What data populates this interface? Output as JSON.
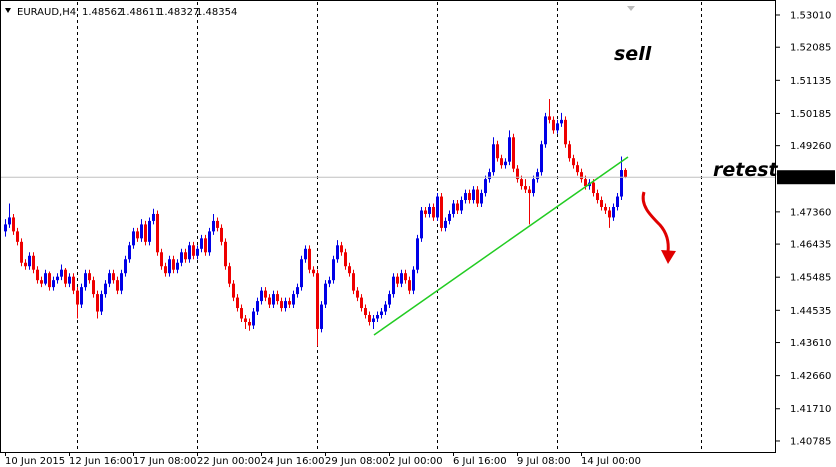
{
  "chart_data": {
    "type": "candlestick",
    "symbol": "EURAUD,H4",
    "up_color": "#0000e6",
    "down_color": "#ee0000",
    "current_price_line": true,
    "annotations": [
      {
        "text": "sell",
        "color": "#e60000"
      },
      {
        "text": "retest",
        "color": "#9b17e6"
      }
    ],
    "ylim": [
      1.4044,
      1.5344
    ],
    "yticks": [
      {
        "value": 1.5301,
        "label": "1.53010"
      },
      1.52085,
      1.51135,
      1.50185,
      {
        "value": 1.4926,
        "label": "1.49260"
      },
      {
        "value": 1.4736,
        "label": "1.47360"
      },
      1.46435,
      1.45485,
      1.44535,
      {
        "value": 1.4361,
        "label": "1.43610"
      },
      {
        "value": 1.4266,
        "label": "1.42660"
      },
      {
        "value": 1.4171,
        "label": "1.41710"
      },
      1.40785
    ],
    "categories": [
      "10 Jun 2015",
      null,
      null,
      null,
      null,
      null,
      null,
      null,
      null,
      null,
      null,
      null,
      null,
      null,
      null,
      null,
      "12 Jun 16:00",
      null,
      null,
      null,
      null,
      null,
      null,
      null,
      null,
      null,
      null,
      null,
      null,
      null,
      null,
      null,
      "17 Jun 08:00",
      null,
      null,
      null,
      null,
      null,
      null,
      null,
      null,
      null,
      null,
      null,
      null,
      null,
      null,
      null,
      "22 Jun 00:00",
      null,
      null,
      null,
      null,
      null,
      null,
      null,
      null,
      null,
      null,
      null,
      null,
      null,
      null,
      null,
      "24 Jun 16:00",
      null,
      null,
      null,
      null,
      null,
      null,
      null,
      null,
      null,
      null,
      null,
      null,
      null,
      null,
      null,
      "29 Jun 08:00",
      null,
      null,
      null,
      null,
      null,
      null,
      null,
      null,
      null,
      null,
      null,
      null,
      null,
      null,
      null,
      "2 Jul 00:00",
      null,
      null,
      null,
      null,
      null,
      null,
      null,
      null,
      null,
      null,
      null,
      null,
      null,
      null,
      null,
      "6 Jul 16:00",
      null,
      null,
      null,
      null,
      null,
      null,
      null,
      null,
      null,
      null,
      null,
      null,
      null,
      null,
      null,
      "9 Jul 08:00",
      null,
      null,
      null,
      null,
      null,
      null,
      null,
      null,
      null,
      null,
      null,
      null,
      null,
      null,
      null,
      "14 Jul 00:00",
      null,
      null,
      null,
      null,
      null,
      null,
      null,
      null,
      null,
      null,
      null
    ],
    "ohlc": [
      [
        1.468,
        1.4715,
        1.4665,
        1.47
      ],
      [
        1.47,
        1.476,
        1.469,
        1.472
      ],
      [
        1.472,
        1.473,
        1.467,
        1.468
      ],
      [
        1.468,
        1.469,
        1.464,
        1.465
      ],
      [
        1.465,
        1.466,
        1.458,
        1.459
      ],
      [
        1.459,
        1.46,
        1.457,
        1.458
      ],
      [
        1.458,
        1.462,
        1.457,
        1.461
      ],
      [
        1.461,
        1.462,
        1.456,
        1.457
      ],
      [
        1.457,
        1.458,
        1.453,
        1.454
      ],
      [
        1.454,
        1.455,
        1.452,
        1.453
      ],
      [
        1.453,
        1.457,
        1.4525,
        1.456
      ],
      [
        1.456,
        1.4565,
        1.451,
        1.452
      ],
      [
        1.452,
        1.455,
        1.451,
        1.454
      ],
      [
        1.454,
        1.456,
        1.453,
        1.455
      ],
      [
        1.455,
        1.4585,
        1.454,
        1.457
      ],
      [
        1.457,
        1.4575,
        1.452,
        1.453
      ],
      [
        1.453,
        1.456,
        1.452,
        1.455
      ],
      [
        1.455,
        1.456,
        1.45,
        1.451
      ],
      [
        1.451,
        1.452,
        1.443,
        1.447
      ],
      [
        1.447,
        1.453,
        1.446,
        1.452
      ],
      [
        1.452,
        1.457,
        1.451,
        1.456
      ],
      [
        1.456,
        1.457,
        1.453,
        1.454
      ],
      [
        1.454,
        1.455,
        1.449,
        1.45
      ],
      [
        1.45,
        1.451,
        1.443,
        1.445
      ],
      [
        1.445,
        1.451,
        1.444,
        1.45
      ],
      [
        1.45,
        1.454,
        1.449,
        1.453
      ],
      [
        1.453,
        1.457,
        1.452,
        1.456
      ],
      [
        1.456,
        1.457,
        1.453,
        1.454
      ],
      [
        1.454,
        1.455,
        1.45,
        1.451
      ],
      [
        1.451,
        1.457,
        1.45,
        1.456
      ],
      [
        1.456,
        1.461,
        1.455,
        1.46
      ],
      [
        1.46,
        1.465,
        1.459,
        1.464
      ],
      [
        1.464,
        1.469,
        1.463,
        1.468
      ],
      [
        1.468,
        1.469,
        1.465,
        1.466
      ],
      [
        1.466,
        1.4715,
        1.465,
        1.47
      ],
      [
        1.47,
        1.471,
        1.464,
        1.465
      ],
      [
        1.465,
        1.472,
        1.464,
        1.471
      ],
      [
        1.471,
        1.4745,
        1.47,
        1.473
      ],
      [
        1.473,
        1.474,
        1.461,
        1.462
      ],
      [
        1.462,
        1.463,
        1.457,
        1.458
      ],
      [
        1.458,
        1.459,
        1.455,
        1.456
      ],
      [
        1.456,
        1.461,
        1.455,
        1.46
      ],
      [
        1.46,
        1.461,
        1.456,
        1.457
      ],
      [
        1.457,
        1.46,
        1.456,
        1.459
      ],
      [
        1.459,
        1.463,
        1.458,
        1.462
      ],
      [
        1.462,
        1.463,
        1.459,
        1.46
      ],
      [
        1.46,
        1.465,
        1.459,
        1.464
      ],
      [
        1.464,
        1.465,
        1.46,
        1.461
      ],
      [
        1.461,
        1.464,
        1.46,
        1.463
      ],
      [
        1.463,
        1.467,
        1.462,
        1.466
      ],
      [
        1.466,
        1.467,
        1.461,
        1.462
      ],
      [
        1.462,
        1.469,
        1.461,
        1.468
      ],
      [
        1.468,
        1.473,
        1.467,
        1.471
      ],
      [
        1.471,
        1.472,
        1.468,
        1.469
      ],
      [
        1.469,
        1.47,
        1.464,
        1.465
      ],
      [
        1.465,
        1.466,
        1.457,
        1.458
      ],
      [
        1.458,
        1.459,
        1.452,
        1.453
      ],
      [
        1.453,
        1.454,
        1.448,
        1.449
      ],
      [
        1.449,
        1.45,
        1.445,
        1.446
      ],
      [
        1.446,
        1.447,
        1.442,
        1.443
      ],
      [
        1.443,
        1.444,
        1.44,
        1.442
      ],
      [
        1.442,
        1.443,
        1.4395,
        1.441
      ],
      [
        1.441,
        1.446,
        1.44,
        1.445
      ],
      [
        1.445,
        1.449,
        1.444,
        1.448
      ],
      [
        1.448,
        1.452,
        1.447,
        1.451
      ],
      [
        1.451,
        1.452,
        1.448,
        1.449
      ],
      [
        1.449,
        1.45,
        1.446,
        1.447
      ],
      [
        1.447,
        1.451,
        1.446,
        1.45
      ],
      [
        1.45,
        1.451,
        1.447,
        1.448
      ],
      [
        1.448,
        1.449,
        1.445,
        1.446
      ],
      [
        1.446,
        1.449,
        1.445,
        1.448
      ],
      [
        1.448,
        1.449,
        1.446,
        1.447
      ],
      [
        1.447,
        1.451,
        1.446,
        1.45
      ],
      [
        1.45,
        1.453,
        1.449,
        1.452
      ],
      [
        1.452,
        1.461,
        1.451,
        1.46
      ],
      [
        1.46,
        1.464,
        1.459,
        1.463
      ],
      [
        1.463,
        1.464,
        1.456,
        1.457
      ],
      [
        1.457,
        1.458,
        1.455,
        1.456
      ],
      [
        1.456,
        1.457,
        1.435,
        1.44
      ],
      [
        1.44,
        1.448,
        1.439,
        1.447
      ],
      [
        1.447,
        1.454,
        1.446,
        1.453
      ],
      [
        1.453,
        1.455,
        1.452,
        1.454
      ],
      [
        1.454,
        1.461,
        1.453,
        1.46
      ],
      [
        1.46,
        1.4655,
        1.459,
        1.464
      ],
      [
        1.464,
        1.465,
        1.461,
        1.462
      ],
      [
        1.462,
        1.463,
        1.457,
        1.458
      ],
      [
        1.458,
        1.459,
        1.455,
        1.456
      ],
      [
        1.456,
        1.457,
        1.45,
        1.451
      ],
      [
        1.451,
        1.452,
        1.448,
        1.449
      ],
      [
        1.449,
        1.45,
        1.445,
        1.446
      ],
      [
        1.446,
        1.447,
        1.443,
        1.444
      ],
      [
        1.444,
        1.445,
        1.441,
        1.442
      ],
      [
        1.442,
        1.444,
        1.44,
        1.443
      ],
      [
        1.443,
        1.445,
        1.442,
        1.444
      ],
      [
        1.444,
        1.446,
        1.443,
        1.445
      ],
      [
        1.445,
        1.448,
        1.444,
        1.447
      ],
      [
        1.447,
        1.451,
        1.446,
        1.45
      ],
      [
        1.45,
        1.456,
        1.449,
        1.455
      ],
      [
        1.455,
        1.456,
        1.452,
        1.453
      ],
      [
        1.453,
        1.457,
        1.452,
        1.456
      ],
      [
        1.456,
        1.457,
        1.453,
        1.454
      ],
      [
        1.454,
        1.455,
        1.45,
        1.451
      ],
      [
        1.451,
        1.458,
        1.45,
        1.457
      ],
      [
        1.457,
        1.467,
        1.456,
        1.466
      ],
      [
        1.466,
        1.475,
        1.465,
        1.474
      ],
      [
        1.474,
        1.475,
        1.472,
        1.473
      ],
      [
        1.473,
        1.476,
        1.472,
        1.475
      ],
      [
        1.475,
        1.476,
        1.471,
        1.472
      ],
      [
        1.472,
        1.479,
        1.471,
        1.478
      ],
      [
        1.478,
        1.479,
        1.468,
        1.469
      ],
      [
        1.469,
        1.472,
        1.468,
        1.471
      ],
      [
        1.471,
        1.474,
        1.47,
        1.473
      ],
      [
        1.473,
        1.477,
        1.472,
        1.476
      ],
      [
        1.476,
        1.477,
        1.473,
        1.474
      ],
      [
        1.474,
        1.478,
        1.473,
        1.477
      ],
      [
        1.477,
        1.48,
        1.476,
        1.479
      ],
      [
        1.479,
        1.48,
        1.476,
        1.477
      ],
      [
        1.477,
        1.481,
        1.476,
        1.48
      ],
      [
        1.48,
        1.481,
        1.475,
        1.476
      ],
      [
        1.476,
        1.48,
        1.475,
        1.479
      ],
      [
        1.479,
        1.484,
        1.478,
        1.483
      ],
      [
        1.483,
        1.486,
        1.482,
        1.485
      ],
      [
        1.485,
        1.495,
        1.484,
        1.493
      ],
      [
        1.493,
        1.494,
        1.488,
        1.489
      ],
      [
        1.489,
        1.49,
        1.486,
        1.487
      ],
      [
        1.487,
        1.489,
        1.486,
        1.488
      ],
      [
        1.488,
        1.497,
        1.487,
        1.495
      ],
      [
        1.495,
        1.496,
        1.485,
        1.486
      ],
      [
        1.486,
        1.487,
        1.482,
        1.483
      ],
      [
        1.483,
        1.484,
        1.48,
        1.481
      ],
      [
        1.481,
        1.483,
        1.479,
        1.48
      ],
      [
        1.48,
        1.481,
        1.47,
        1.479
      ],
      [
        1.479,
        1.484,
        1.478,
        1.483
      ],
      [
        1.483,
        1.486,
        1.482,
        1.485
      ],
      [
        1.485,
        1.494,
        1.484,
        1.493
      ],
      [
        1.493,
        1.502,
        1.492,
        1.501
      ],
      [
        1.501,
        1.506,
        1.499,
        1.5
      ],
      [
        1.5,
        1.501,
        1.496,
        1.497
      ],
      [
        1.497,
        1.5,
        1.496,
        1.499
      ],
      [
        1.499,
        1.502,
        1.498,
        1.5
      ],
      [
        1.5,
        1.501,
        1.492,
        1.493
      ],
      [
        1.493,
        1.494,
        1.488,
        1.489
      ],
      [
        1.489,
        1.49,
        1.486,
        1.487
      ],
      [
        1.487,
        1.488,
        1.484,
        1.485
      ],
      [
        1.485,
        1.486,
        1.482,
        1.483
      ],
      [
        1.483,
        1.484,
        1.48,
        1.481
      ],
      [
        1.481,
        1.483,
        1.48,
        1.482
      ],
      [
        1.482,
        1.483,
        1.478,
        1.479
      ],
      [
        1.479,
        1.48,
        1.476,
        1.477
      ],
      [
        1.477,
        1.478,
        1.474,
        1.475
      ],
      [
        1.475,
        1.476,
        1.473,
        1.474
      ],
      [
        1.474,
        1.475,
        1.469,
        1.472
      ],
      [
        1.472,
        1.476,
        1.471,
        1.475
      ],
      [
        1.475,
        1.479,
        1.474,
        1.478
      ],
      [
        1.478,
        1.4895,
        1.477,
        1.4856
      ],
      [
        1.48562,
        1.48611,
        1.48327,
        1.48354
      ]
    ]
  }
}
